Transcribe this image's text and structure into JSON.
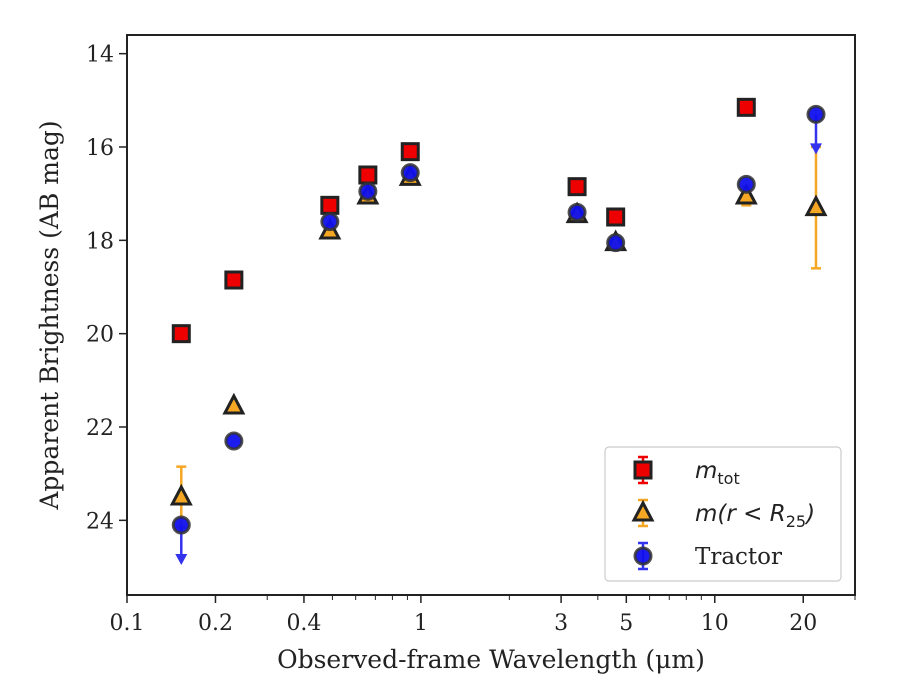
{
  "chart_data": {
    "type": "scatter",
    "title": "",
    "xlabel": "Observed-frame Wavelength (μm)",
    "ylabel": "Apparent Brightness (AB mag)",
    "xscale": "log",
    "xlim": [
      0.1,
      30
    ],
    "ylim": [
      25.6,
      13.6
    ],
    "y_inverted": true,
    "x_ticks": [
      {
        "value": 0.1,
        "label": "0.1"
      },
      {
        "value": 0.2,
        "label": "0.2"
      },
      {
        "value": 0.4,
        "label": "0.4"
      },
      {
        "value": 1,
        "label": "1"
      },
      {
        "value": 3,
        "label": "3"
      },
      {
        "value": 5,
        "label": "5"
      },
      {
        "value": 10,
        "label": "10"
      },
      {
        "value": 20,
        "label": "20"
      }
    ],
    "y_ticks": [
      {
        "value": 14,
        "label": "14"
      },
      {
        "value": 16,
        "label": "16"
      },
      {
        "value": 18,
        "label": "18"
      },
      {
        "value": 20,
        "label": "20"
      },
      {
        "value": 22,
        "label": "22"
      },
      {
        "value": 24,
        "label": "24"
      }
    ],
    "grid": false,
    "legend_position": "bottom-right",
    "series": [
      {
        "name": "m_tot",
        "legend_label": {
          "main": "m",
          "sub": "tot"
        },
        "marker": "square",
        "face_color": "#ee0000",
        "edge_color": "#222222",
        "error_color": "#ee0000",
        "points": [
          {
            "x": 0.153,
            "y": 20.0
          },
          {
            "x": 0.231,
            "y": 18.85
          },
          {
            "x": 0.49,
            "y": 17.25
          },
          {
            "x": 0.66,
            "y": 16.6
          },
          {
            "x": 0.92,
            "y": 16.1
          },
          {
            "x": 3.4,
            "y": 16.85
          },
          {
            "x": 4.6,
            "y": 17.5
          },
          {
            "x": 12.8,
            "y": 15.15
          }
        ]
      },
      {
        "name": "m(r < R25)",
        "legend_label": {
          "main": "m(r < R",
          "sub": "25",
          "tail": ")"
        },
        "marker": "triangle",
        "face_color": "#f5a623",
        "edge_color": "#222222",
        "error_color": "#f5a623",
        "points": [
          {
            "x": 0.153,
            "y": 23.5,
            "yerr": 0.65
          },
          {
            "x": 0.231,
            "y": 21.55
          },
          {
            "x": 0.49,
            "y": 17.8
          },
          {
            "x": 0.66,
            "y": 17.05
          },
          {
            "x": 0.92,
            "y": 16.65
          },
          {
            "x": 3.4,
            "y": 17.45
          },
          {
            "x": 4.6,
            "y": 18.05
          },
          {
            "x": 12.8,
            "y": 17.05,
            "yerr": 0.2
          },
          {
            "x": 22.1,
            "y": 17.3,
            "yerr": 1.3
          }
        ]
      },
      {
        "name": "Tractor",
        "legend_label": {
          "main": "Tractor"
        },
        "marker": "circle",
        "face_color": "#1010ee",
        "edge_color": "#333333",
        "error_color": "#3333ee",
        "points": [
          {
            "x": 0.153,
            "y": 24.1,
            "upper_limit": true
          },
          {
            "x": 0.231,
            "y": 22.3
          },
          {
            "x": 0.49,
            "y": 17.6
          },
          {
            "x": 0.66,
            "y": 16.95
          },
          {
            "x": 0.92,
            "y": 16.55
          },
          {
            "x": 3.4,
            "y": 17.4
          },
          {
            "x": 4.6,
            "y": 18.05
          },
          {
            "x": 12.8,
            "y": 16.8
          },
          {
            "x": 22.1,
            "y": 15.3,
            "upper_limit": true
          }
        ]
      }
    ]
  }
}
